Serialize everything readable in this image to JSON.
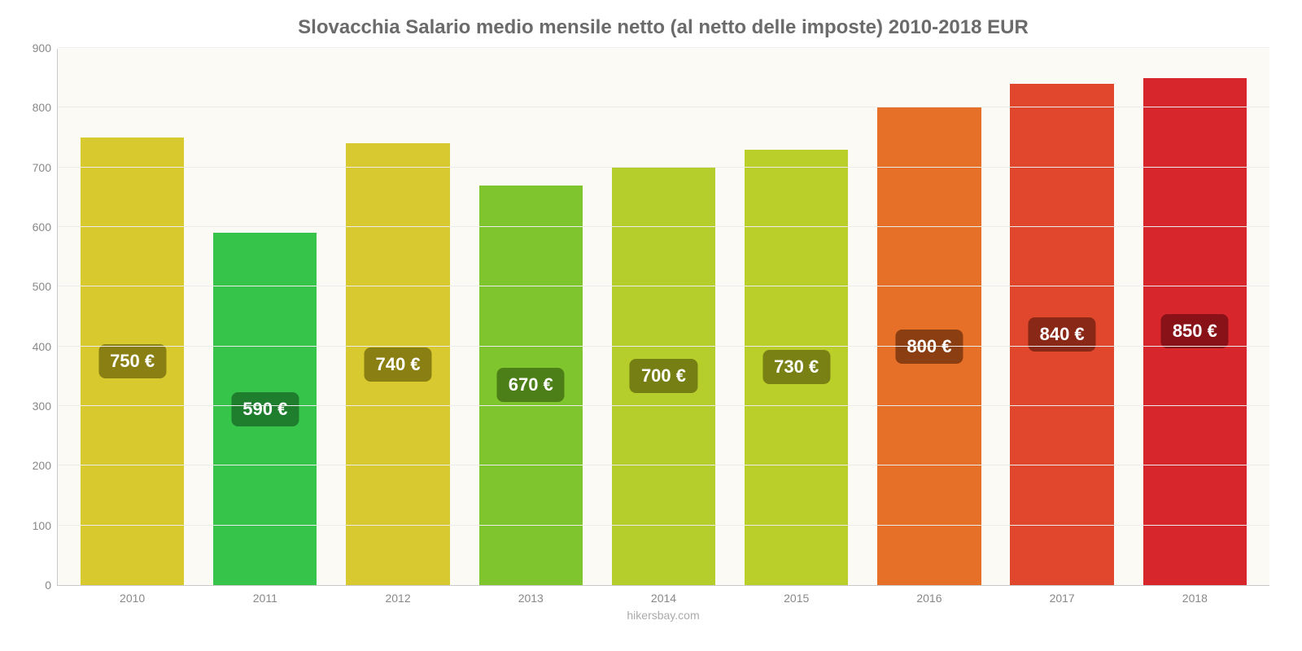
{
  "chart": {
    "type": "bar",
    "title": "Slovacchia Salario medio mensile netto (al netto delle imposte) 2010-2018 EUR",
    "title_fontsize": 24,
    "title_color": "#6b6b6b",
    "categories": [
      "2010",
      "2011",
      "2012",
      "2013",
      "2014",
      "2015",
      "2016",
      "2017",
      "2018"
    ],
    "values": [
      750,
      590,
      740,
      670,
      700,
      730,
      800,
      840,
      850
    ],
    "value_labels": [
      "750 €",
      "590 €",
      "740 €",
      "670 €",
      "700 €",
      "730 €",
      "800 €",
      "840 €",
      "850 €"
    ],
    "bar_colors": [
      "#d8c92f",
      "#37c44b",
      "#d7c92f",
      "#7fc52d",
      "#b5ce2b",
      "#bbcf2a",
      "#e77028",
      "#e0472c",
      "#d8272c"
    ],
    "badge_bg_colors": [
      "#8a7f12",
      "#1f7d2e",
      "#8a7f12",
      "#4d7f18",
      "#757f14",
      "#7a8114",
      "#8a3e12",
      "#8a2818",
      "#891219"
    ],
    "badge_text_color": "#ffffff",
    "badge_fontsize": 22,
    "ylim": [
      0,
      900
    ],
    "ytick_step": 100,
    "y_ticks": [
      0,
      100,
      200,
      300,
      400,
      500,
      600,
      700,
      800,
      900
    ],
    "axis_label_fontsize": 14,
    "axis_label_color": "#888888",
    "grid_color": "#ececec",
    "plot_bg": "#fbfaf5",
    "bar_width_ratio": 0.78,
    "source_text": "hikersbay.com",
    "source_fontsize": 14,
    "source_color": "#aaaaaa"
  }
}
